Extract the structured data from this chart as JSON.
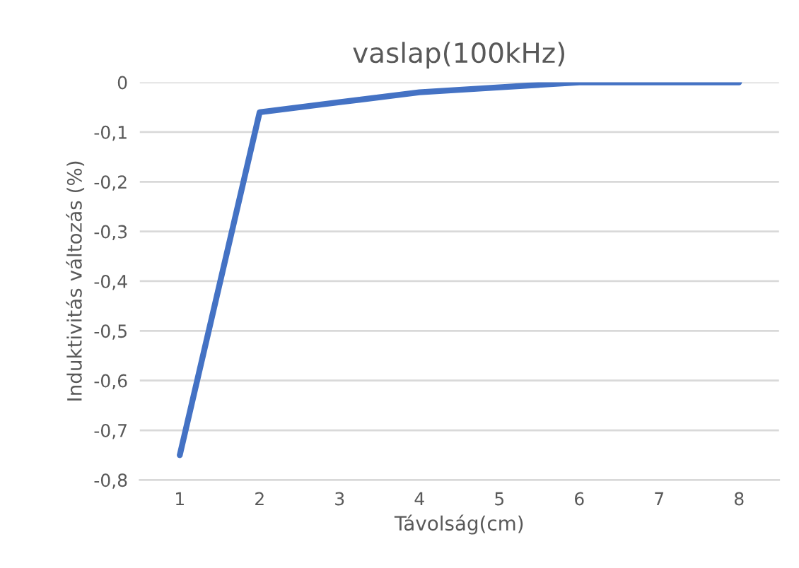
{
  "chart_data": {
    "type": "line",
    "title": "vaslap(100kHz)",
    "xlabel": "Távolság(cm)",
    "ylabel": "Induktivitás változás (%)",
    "categories": [
      "1",
      "2",
      "3",
      "4",
      "5",
      "6",
      "7",
      "8"
    ],
    "series": [
      {
        "color": "#4472c4",
        "values": [
          -0.75,
          -0.06,
          -0.04,
          -0.02,
          -0.01,
          0,
          0,
          0
        ]
      }
    ],
    "ylim": [
      -0.8,
      0
    ],
    "yticks": [
      {
        "value": 0,
        "label": "0"
      },
      {
        "value": -0.1,
        "label": "-0,1"
      },
      {
        "value": -0.2,
        "label": "-0,2"
      },
      {
        "value": -0.3,
        "label": "-0,3"
      },
      {
        "value": -0.4,
        "label": "-0,4"
      },
      {
        "value": -0.5,
        "label": "-0,5"
      },
      {
        "value": -0.6,
        "label": "-0,6"
      },
      {
        "value": -0.7,
        "label": "-0,7"
      },
      {
        "value": -0.8,
        "label": "-0,8"
      }
    ],
    "grid": "y",
    "marker": "none",
    "line_style": "solid",
    "legend": false
  }
}
